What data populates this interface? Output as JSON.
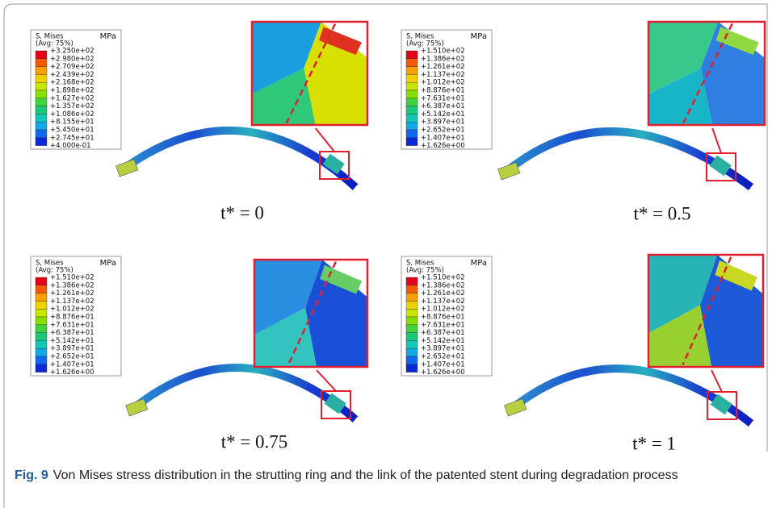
{
  "panels": [
    {
      "legend_title": "S, Mises",
      "legend_avg": "(Avg: 75%)",
      "unit": "MPa",
      "legend_values": [
        "+3.250e+02",
        "+2.980e+02",
        "+2.709e+02",
        "+2.439e+02",
        "+2.168e+02",
        "+1.898e+02",
        "+1.627e+02",
        "+1.357e+02",
        "+1.086e+02",
        "+8.155e+01",
        "+5.450e+01",
        "+2.745e+01",
        "+4.000e-01"
      ],
      "time_label": "t* = 0"
    },
    {
      "legend_title": "S, Mises",
      "legend_avg": "(Avg: 75%)",
      "unit": "MPa",
      "legend_values": [
        "+1.510e+02",
        "+1.386e+02",
        "+1.261e+02",
        "+1.137e+02",
        "+1.012e+02",
        "+8.876e+01",
        "+7.631e+01",
        "+6.387e+01",
        "+5.142e+01",
        "+3.897e+01",
        "+2.652e+01",
        "+1.407e+01",
        "+1.626e+00"
      ],
      "time_label": "t* = 0.5"
    },
    {
      "legend_title": "S, Mises",
      "legend_avg": "(Avg: 75%)",
      "unit": "MPa",
      "legend_values": [
        "+1.510e+02",
        "+1.386e+02",
        "+1.261e+02",
        "+1.137e+02",
        "+1.012e+02",
        "+8.876e+01",
        "+7.631e+01",
        "+6.387e+01",
        "+5.142e+01",
        "+3.897e+01",
        "+2.652e+01",
        "+1.407e+01",
        "+1.626e+00"
      ],
      "time_label": "t* = 0.75"
    },
    {
      "legend_title": "S, Mises",
      "legend_avg": "(Avg: 75%)",
      "unit": "MPa",
      "legend_values": [
        "+1.510e+02",
        "+1.386e+02",
        "+1.261e+02",
        "+1.137e+02",
        "+1.012e+02",
        "+8.876e+01",
        "+7.631e+01",
        "+6.387e+01",
        "+5.142e+01",
        "+3.897e+01",
        "+2.652e+01",
        "+1.407e+01",
        "+1.626e+00"
      ],
      "time_label": "t* = 1"
    }
  ],
  "caption": {
    "label": "Fig. 9",
    "text": "Von Mises stress distribution in the strutting ring and the link of the patented stent during degradation process"
  }
}
